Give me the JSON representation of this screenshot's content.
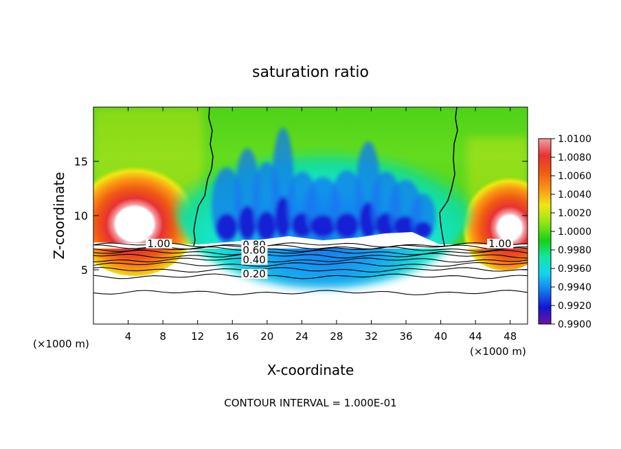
{
  "chart_data": {
    "type": "heatmap",
    "title": "saturation ratio",
    "xlabel": "X-coordinate",
    "ylabel": "Z-coordinate",
    "x_units_left": "(×1000 m)",
    "x_units_right": "(×1000 m)",
    "xlim": [
      0,
      50
    ],
    "ylim": [
      0,
      20
    ],
    "xticks": [
      4,
      8,
      12,
      16,
      20,
      24,
      28,
      32,
      36,
      40,
      44,
      48
    ],
    "yticks": [
      5,
      10,
      15
    ],
    "colorbar": {
      "min": 0.99,
      "max": 1.01,
      "labels": [
        "1.0100",
        "1.0080",
        "1.0060",
        "1.0040",
        "1.0020",
        "1.0000",
        "0.9980",
        "0.9960",
        "0.9940",
        "0.9920",
        "0.9900"
      ],
      "colors": [
        "#f4a0a8",
        "#e83232",
        "#f05a14",
        "#fa9614",
        "#f0e614",
        "#96e614",
        "#14d214",
        "#14e6aa",
        "#14d2f0",
        "#1478f0",
        "#1414d2",
        "#6e14a0"
      ]
    },
    "contour_line_labels": [
      {
        "text": "1.00",
        "x": 6.2,
        "y": 7.1
      },
      {
        "text": "0.80",
        "x": 17.2,
        "y": 7.0
      },
      {
        "text": "0.60",
        "x": 17.2,
        "y": 6.5
      },
      {
        "text": "0.40",
        "x": 17.2,
        "y": 5.6
      },
      {
        "text": "0.20",
        "x": 17.2,
        "y": 4.3
      },
      {
        "text": "1.00",
        "x": 45.5,
        "y": 7.1
      }
    ],
    "contour_levels_z": [
      7.3,
      7.1,
      6.9,
      6.6,
      6.3,
      5.9,
      5.5,
      5.0,
      4.4,
      2.9
    ],
    "footer": "CONTOUR INTERVAL = 1.000E-01"
  }
}
